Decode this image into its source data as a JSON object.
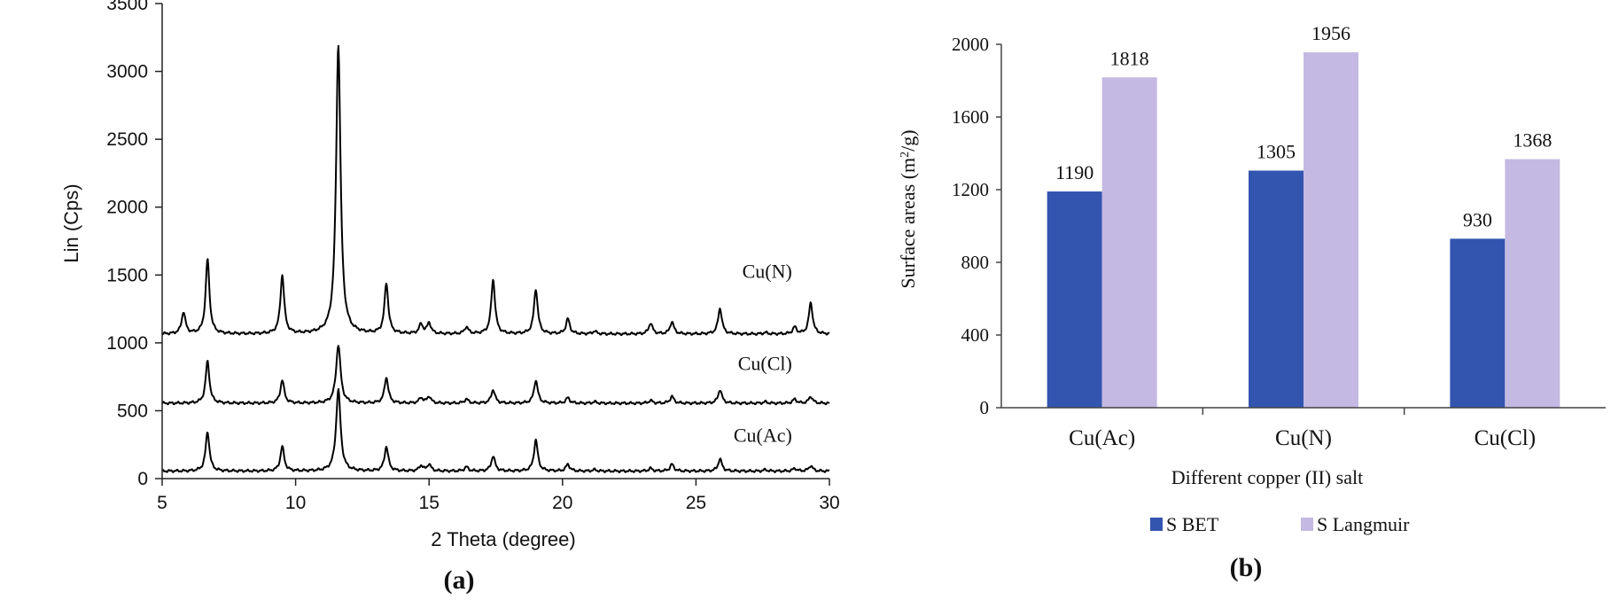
{
  "chart_data": [
    {
      "type": "line",
      "panel_label": "(a)",
      "xlabel": "2 Theta (degree)",
      "ylabel": "Lin (Cps)",
      "xlim": [
        5,
        30
      ],
      "ylim": [
        0,
        3500
      ],
      "x_ticks": [
        "5",
        "10",
        "15",
        "20",
        "25",
        "30"
      ],
      "y_ticks": [
        "0",
        "500",
        "1000",
        "1500",
        "2000",
        "2500",
        "3000",
        "3500"
      ],
      "line_color": "#000000",
      "peak_positions": [
        5.8,
        6.7,
        9.5,
        11.6,
        13.4,
        14.7,
        15.0,
        16.4,
        17.4,
        19.0,
        20.2,
        21.2,
        23.3,
        24.1,
        25.9,
        27.6,
        28.7,
        29.3
      ],
      "series": [
        {
          "name": "Cu(N)",
          "baseline": 1065,
          "peak_heights": [
            160,
            550,
            430,
            2130,
            370,
            70,
            80,
            50,
            400,
            330,
            110,
            20,
            80,
            90,
            190,
            10,
            50,
            230
          ]
        },
        {
          "name": "Cu(Cl)",
          "baseline": 555,
          "peak_heights": [
            0,
            310,
            170,
            430,
            190,
            40,
            50,
            30,
            100,
            170,
            40,
            10,
            20,
            50,
            100,
            10,
            30,
            50
          ]
        },
        {
          "name": "Cu(Ac)",
          "baseline": 55,
          "peak_heights": [
            0,
            290,
            180,
            600,
            180,
            40,
            50,
            30,
            110,
            230,
            50,
            10,
            20,
            50,
            90,
            10,
            20,
            40
          ]
        }
      ]
    },
    {
      "type": "bar",
      "panel_label": "(b)",
      "xlabel": "Different copper (II) salt",
      "ylabel": "Surface areas (m²/g)",
      "categories": [
        "Cu(Ac)",
        "Cu(N)",
        "Cu(Cl)"
      ],
      "ylim": [
        0,
        2000
      ],
      "y_ticks": [
        "0",
        "400",
        "800",
        "1200",
        "1600",
        "2000"
      ],
      "series": [
        {
          "name": "S BET",
          "values": [
            1190,
            1305,
            930
          ],
          "labels": [
            "1190",
            "1305",
            "930"
          ],
          "color": "#3355b0"
        },
        {
          "name": "S Langmuir",
          "values": [
            1818,
            1956,
            1368
          ],
          "labels": [
            "1818",
            "1956",
            "1368"
          ],
          "color": "#c4b9e2"
        }
      ]
    }
  ]
}
